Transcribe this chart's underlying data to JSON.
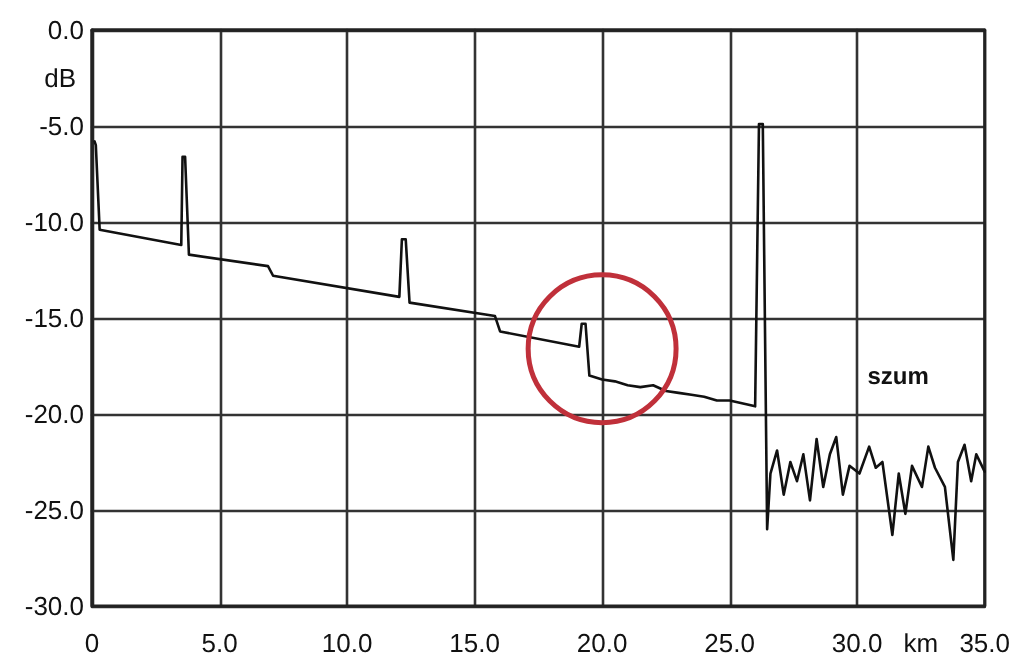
{
  "chart_data": {
    "type": "line",
    "xlabel": "km",
    "ylabel": "dB",
    "annotations": [
      "szum"
    ],
    "xlim": [
      0,
      35
    ],
    "ylim": [
      -30,
      0
    ],
    "xticks": [
      {
        "value": 0,
        "label": "0"
      },
      {
        "value": 5,
        "label": "5.0"
      },
      {
        "value": 10,
        "label": "10.0"
      },
      {
        "value": 15,
        "label": "15.0"
      },
      {
        "value": 20,
        "label": "20.0"
      },
      {
        "value": 25,
        "label": "25.0"
      },
      {
        "value": 30,
        "label": "30.0"
      },
      {
        "value": 35,
        "label": "35.0"
      }
    ],
    "yticks": [
      {
        "value": 0,
        "label": "0.0"
      },
      {
        "value": -5,
        "label": "-5.0"
      },
      {
        "value": -10,
        "label": "-10.0"
      },
      {
        "value": -15,
        "label": "-15.0"
      },
      {
        "value": -20,
        "label": "-20.0"
      },
      {
        "value": -25,
        "label": "-25.0"
      },
      {
        "value": -30,
        "label": "-30.0"
      }
    ],
    "grid": true,
    "marker": "none",
    "line_style": "solid",
    "series": [
      {
        "color": "#111111",
        "x": [
          0.1,
          0.15,
          0.3,
          3.5,
          3.55,
          3.65,
          3.8,
          6.9,
          7.1,
          12.05,
          12.15,
          12.3,
          12.45,
          15.8,
          16.0,
          19.1,
          19.2,
          19.35,
          19.5,
          20.0,
          20.5,
          21.0,
          21.5,
          22.0,
          22.5,
          23.0,
          23.5,
          24.0,
          24.5,
          25.0,
          25.7,
          26.0,
          26.15,
          26.3,
          26.47,
          26.6,
          26.86,
          27.12,
          27.38,
          27.64,
          27.89,
          28.15,
          28.41,
          28.67,
          28.93,
          29.18,
          29.44,
          29.7,
          30.09,
          30.47,
          30.73,
          30.99,
          31.38,
          31.63,
          31.89,
          32.15,
          32.54,
          32.79,
          33.05,
          33.44,
          33.77,
          33.95,
          34.21,
          34.47,
          34.67,
          35.0
        ],
        "values": [
          -5.8,
          -6.0,
          -10.4,
          -11.2,
          -6.6,
          -6.6,
          -11.7,
          -12.3,
          -12.8,
          -13.9,
          -10.9,
          -10.9,
          -14.2,
          -14.9,
          -15.7,
          -16.5,
          -15.3,
          -15.3,
          -18.0,
          -18.2,
          -18.3,
          -18.5,
          -18.6,
          -18.5,
          -18.8,
          -18.9,
          -19.0,
          -19.1,
          -19.3,
          -19.3,
          -19.5,
          -19.6,
          -4.9,
          -4.9,
          -26.0,
          -23.1,
          -21.9,
          -24.2,
          -22.5,
          -23.5,
          -22.1,
          -24.5,
          -21.3,
          -23.8,
          -22.1,
          -21.2,
          -24.2,
          -22.7,
          -23.1,
          -21.7,
          -22.8,
          -22.5,
          -26.3,
          -23.1,
          -25.2,
          -22.7,
          -23.8,
          -21.7,
          -22.8,
          -23.8,
          -27.6,
          -22.5,
          -21.6,
          -23.5,
          -22.1,
          -23.0
        ]
      }
    ]
  }
}
